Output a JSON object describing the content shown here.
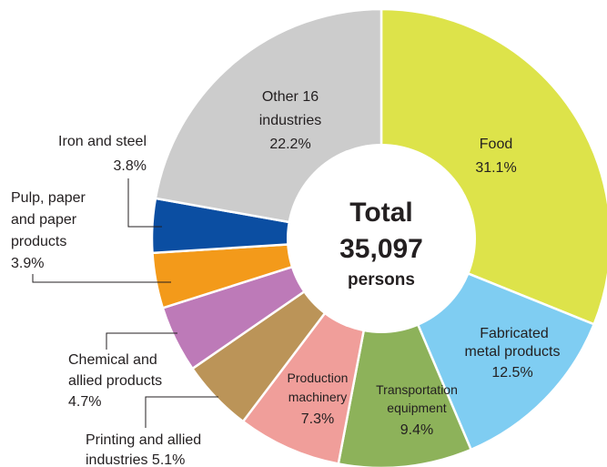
{
  "chart_data": {
    "type": "pie",
    "variant": "donut",
    "center": {
      "line1": "Total",
      "line2": "35,097",
      "line3": "persons"
    },
    "slices": [
      {
        "name": "Food",
        "value": 31.1,
        "label": "31.1%",
        "color": "#dde34a"
      },
      {
        "name": "Fabricated metal products",
        "value": 12.5,
        "label": "12.5%",
        "color": "#7fcdf2"
      },
      {
        "name": "Transportation equipment",
        "value": 9.4,
        "label": "9.4%",
        "color": "#8db25a"
      },
      {
        "name": "Production machinery",
        "value": 7.3,
        "label": "7.3%",
        "color": "#f09e9a"
      },
      {
        "name": "Printing and allied industries",
        "value": 5.1,
        "label": "5.1%",
        "color": "#bb9458"
      },
      {
        "name": "Chemical and allied products",
        "value": 4.7,
        "label": "4.7%",
        "color": "#bd7ab8"
      },
      {
        "name": "Pulp, paper and paper products",
        "value": 3.9,
        "label": "3.9%",
        "color": "#f39a1a"
      },
      {
        "name": "Iron and steel",
        "value": 3.8,
        "label": "3.8%",
        "color": "#0b4ea2"
      },
      {
        "name": "Other 16 industries",
        "value": 22.2,
        "label": "22.2%",
        "color": "#cccccc"
      }
    ],
    "slice_labels": {
      "food": {
        "line1": "Food",
        "line2": "31.1%"
      },
      "fabricated": {
        "line1": "Fabricated",
        "line2": "metal products",
        "line3": "12.5%"
      },
      "transport": {
        "line1": "Transportation",
        "line2": "equipment",
        "line3": "9.4%"
      },
      "production": {
        "line1": "Production",
        "line2": "machinery",
        "line3": "7.3%"
      },
      "other": {
        "line1": "Other 16",
        "line2": "industries",
        "line3": "22.2%"
      }
    },
    "outside_labels": {
      "iron": {
        "line1": "Iron and steel",
        "line2": "3.8%"
      },
      "pulp": {
        "line1": "Pulp, paper",
        "line2": "and paper",
        "line3": "products",
        "line4": "3.9%"
      },
      "chemical": {
        "line1": "Chemical and",
        "line2": "allied products",
        "line3": "4.7%"
      },
      "printing": {
        "line1": "Printing and allied",
        "line2": "industries 5.1%"
      }
    }
  }
}
